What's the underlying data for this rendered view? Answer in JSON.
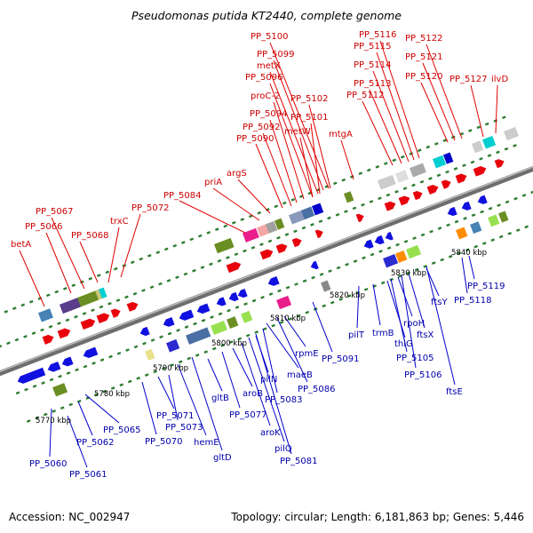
{
  "title": "Pseudomonas putida KT2440, complete genome",
  "footer": {
    "accession": "Accession: NC_002947",
    "topology": "Topology: circular; Length: 6,181,863 bp; Genes: 5,446"
  },
  "colors": {
    "backbone": "#808080",
    "forward_label": "#cc0000",
    "reverse_label": "#0000aa",
    "tick": "#2e7d32"
  },
  "scale_marks": [
    {
      "label": "5770 kbp"
    },
    {
      "label": "5780 kbp"
    },
    {
      "label": "5790 kbp"
    },
    {
      "label": "5800 kbp"
    },
    {
      "label": "5810 kbp"
    },
    {
      "label": "5820 kbp"
    },
    {
      "label": "5830 kbp"
    },
    {
      "label": "5840 kbp"
    }
  ],
  "forward_labels": [
    {
      "text": "betA"
    },
    {
      "text": "PP_5066"
    },
    {
      "text": "PP_5067"
    },
    {
      "text": "PP_5068"
    },
    {
      "text": "trxC"
    },
    {
      "text": "PP_5072"
    },
    {
      "text": "PP_5084"
    },
    {
      "text": "priA"
    },
    {
      "text": "argS"
    },
    {
      "text": "PP_5090"
    },
    {
      "text": "PP_5092"
    },
    {
      "text": "PP_5094"
    },
    {
      "text": "proC-2"
    },
    {
      "text": "PP_5096"
    },
    {
      "text": "metX"
    },
    {
      "text": "PP_5099"
    },
    {
      "text": "PP_5100"
    },
    {
      "text": "metW"
    },
    {
      "text": "PP_5101"
    },
    {
      "text": "PP_5102"
    },
    {
      "text": "mtgA"
    },
    {
      "text": "PP_5112"
    },
    {
      "text": "PP_5113"
    },
    {
      "text": "PP_5114"
    },
    {
      "text": "PP_5115"
    },
    {
      "text": "PP_5116"
    },
    {
      "text": "PP_5120"
    },
    {
      "text": "PP_5121"
    },
    {
      "text": "PP_5122"
    },
    {
      "text": "PP_5127"
    },
    {
      "text": "ilvD"
    }
  ],
  "reverse_labels": [
    {
      "text": "PP_5060"
    },
    {
      "text": "PP_5061"
    },
    {
      "text": "PP_5062"
    },
    {
      "text": "PP_5065"
    },
    {
      "text": "PP_5070"
    },
    {
      "text": "PP_5071"
    },
    {
      "text": "PP_5073"
    },
    {
      "text": "hemE"
    },
    {
      "text": "gltD"
    },
    {
      "text": "gltB"
    },
    {
      "text": "PP_5077"
    },
    {
      "text": "aroB"
    },
    {
      "text": "aroK"
    },
    {
      "text": "pilQ"
    },
    {
      "text": "pilN"
    },
    {
      "text": "PP_5081"
    },
    {
      "text": "PP_5083"
    },
    {
      "text": "maeB"
    },
    {
      "text": "PP_5086"
    },
    {
      "text": "rpmE"
    },
    {
      "text": "PP_5091"
    },
    {
      "text": "pilT"
    },
    {
      "text": "trmB"
    },
    {
      "text": "thiG"
    },
    {
      "text": "PP_5105"
    },
    {
      "text": "rpoH"
    },
    {
      "text": "PP_5106"
    },
    {
      "text": "ftsX"
    },
    {
      "text": "ftsE"
    },
    {
      "text": "ftsY"
    },
    {
      "text": "PP_5118"
    },
    {
      "text": "PP_5119"
    }
  ]
}
